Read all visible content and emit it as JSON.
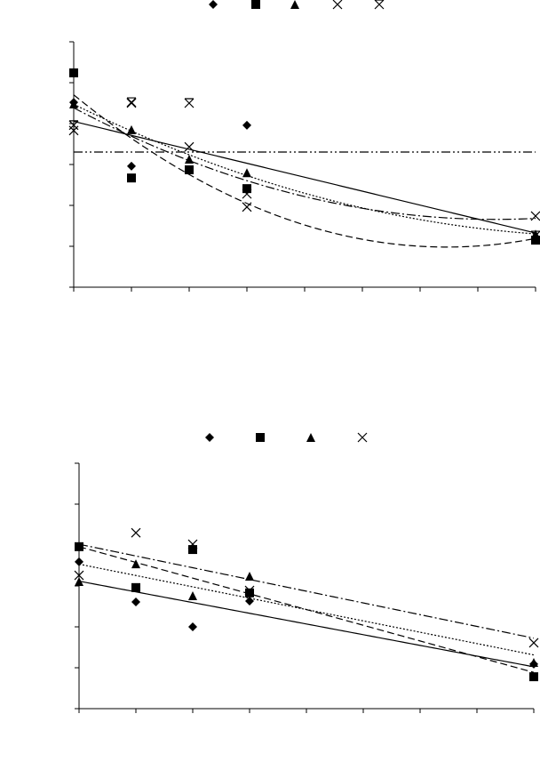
{
  "chart_data": [
    {
      "type": "scatter",
      "x": [
        0,
        1,
        2,
        3,
        8
      ],
      "xlim": [
        0,
        8
      ],
      "ylim": [
        0,
        6
      ],
      "xticks": [
        0,
        1,
        2,
        3,
        4,
        5,
        6,
        7,
        8
      ],
      "yticks": [
        0,
        1,
        2,
        3,
        4,
        5,
        6
      ],
      "series": [
        {
          "marker": "diamond",
          "color": "#000000",
          "trendline": "linear",
          "dash": "solid",
          "values": [
            4.52,
            2.96,
            2.85,
            3.96,
            1.2
          ]
        },
        {
          "marker": "square",
          "color": "#000000",
          "trendline": "poly2",
          "dash": "dashed",
          "values": [
            5.24,
            2.67,
            2.87,
            2.41,
            1.15
          ]
        },
        {
          "marker": "triangle",
          "color": "#000000",
          "trendline": "poly2",
          "dash": "dotted",
          "values": [
            4.48,
            3.85,
            3.13,
            2.8,
            1.3
          ]
        },
        {
          "marker": "x",
          "color": "#000000",
          "trendline": "poly2",
          "dash": "dashdot",
          "values": [
            3.83,
            4.5,
            3.43,
            1.96,
            1.74
          ]
        },
        {
          "marker": "star",
          "color": "#000000",
          "trendline": "mean",
          "dash": "dashdotdot",
          "values": [
            3.96,
            4.52,
            4.5,
            2.28,
            1.26
          ]
        }
      ]
    },
    {
      "type": "scatter",
      "x": [
        0,
        1,
        2,
        3,
        8
      ],
      "xlim": [
        0,
        8
      ],
      "ylim": [
        0,
        6
      ],
      "xticks": [
        0,
        1,
        2,
        3,
        4,
        5,
        6,
        7,
        8
      ],
      "yticks": [
        0,
        1,
        2,
        3,
        4,
        5,
        6
      ],
      "series": [
        {
          "marker": "diamond",
          "color": "#000000",
          "trendline": "linear",
          "dash": "solid",
          "values": [
            3.59,
            2.61,
            2.0,
            2.63,
            1.09
          ]
        },
        {
          "marker": "square",
          "color": "#000000",
          "trendline": "linear",
          "dash": "dashed",
          "values": [
            3.96,
            2.96,
            3.89,
            2.83,
            0.78
          ]
        },
        {
          "marker": "triangle",
          "color": "#000000",
          "trendline": "linear",
          "dash": "dotted",
          "values": [
            3.11,
            3.54,
            2.76,
            3.24,
            1.13
          ]
        },
        {
          "marker": "x",
          "color": "#000000",
          "trendline": "linear",
          "dash": "dashdot",
          "values": [
            3.26,
            4.3,
            4.02,
            2.89,
            1.61
          ]
        }
      ]
    }
  ]
}
